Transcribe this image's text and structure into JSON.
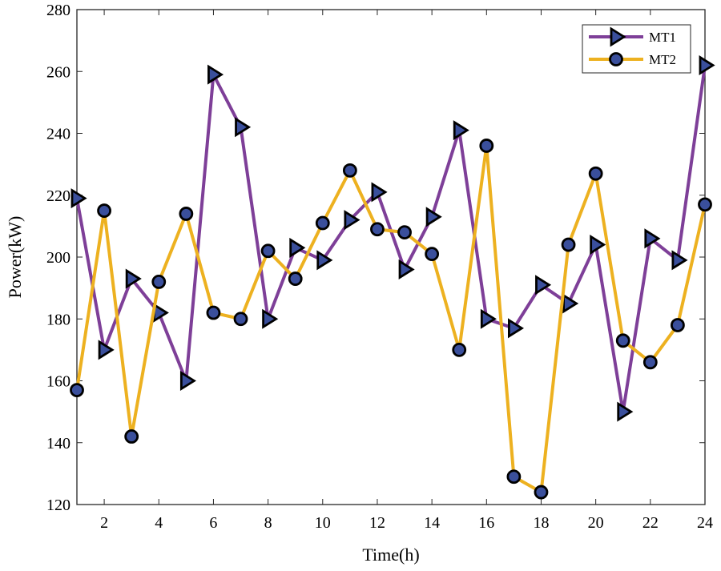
{
  "chart_data": {
    "type": "line",
    "title": "",
    "xlabel": "Time(h)",
    "ylabel": "Power(kW)",
    "xlim": [
      1,
      24
    ],
    "ylim": [
      120,
      280
    ],
    "xticks": [
      2,
      4,
      6,
      8,
      10,
      12,
      14,
      16,
      18,
      20,
      22,
      24
    ],
    "yticks": [
      120,
      140,
      160,
      180,
      200,
      220,
      240,
      260,
      280
    ],
    "grid": false,
    "legend_position": "top-right",
    "x": [
      1,
      2,
      3,
      4,
      5,
      6,
      7,
      8,
      9,
      10,
      11,
      12,
      13,
      14,
      15,
      16,
      17,
      18,
      19,
      20,
      21,
      22,
      23,
      24
    ],
    "series": [
      {
        "name": "MT1",
        "color": "#7E3F98",
        "marker": "triangle-right",
        "values": [
          219,
          170,
          193,
          182,
          160,
          259,
          242,
          180,
          203,
          199,
          212,
          221,
          196,
          213,
          241,
          180,
          177,
          191,
          185,
          204,
          150,
          206,
          199,
          262
        ]
      },
      {
        "name": "MT2",
        "color": "#EDB120",
        "marker": "circle",
        "values": [
          157,
          215,
          142,
          192,
          214,
          182,
          180,
          202,
          193,
          211,
          228,
          209,
          208,
          201,
          170,
          236,
          129,
          124,
          204,
          227,
          173,
          166,
          178,
          217
        ]
      }
    ],
    "marker_fill": "#3A4F9C"
  }
}
